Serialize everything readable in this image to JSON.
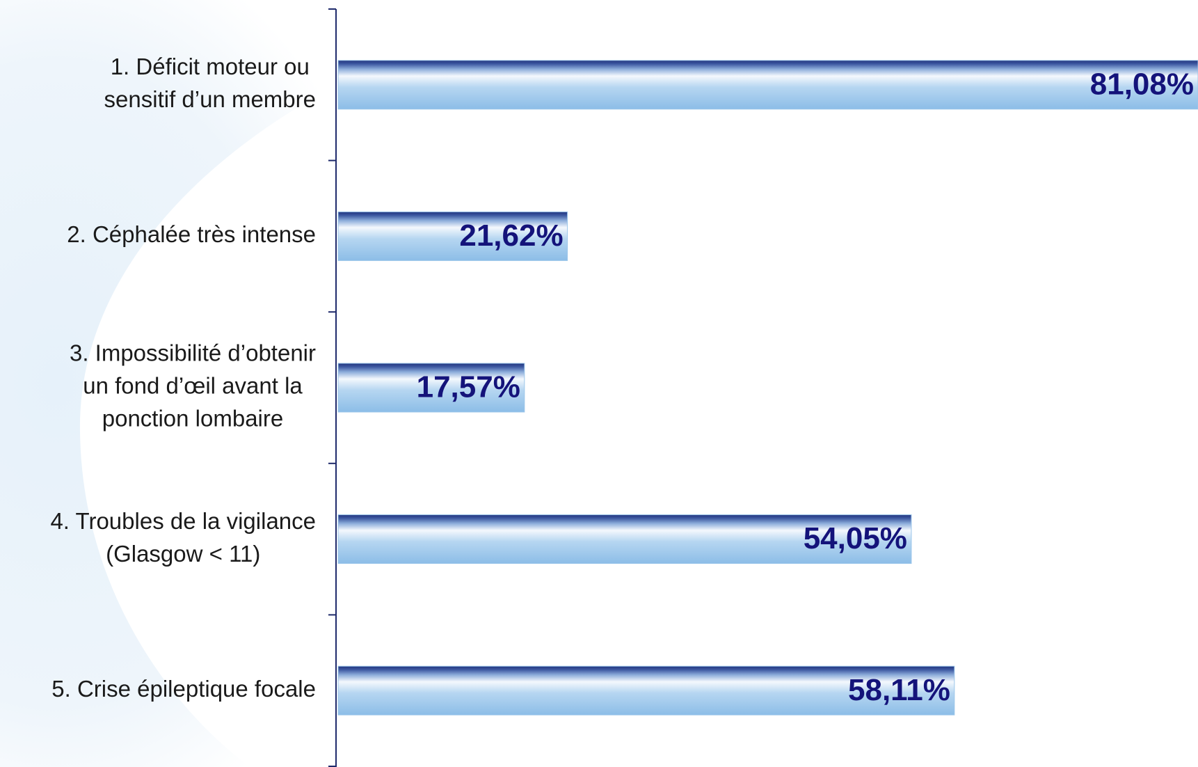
{
  "chart_data": {
    "type": "bar",
    "orientation": "horizontal",
    "categories": [
      [
        "1. Déficit moteur ou",
        "sensitif d’un membre"
      ],
      [
        "2. Céphalée très intense"
      ],
      [
        "3. Impossibilité d’obtenir",
        "un fond d’œil avant la",
        "ponction lombaire"
      ],
      [
        "4. Troubles de la vigilance",
        "(Glasgow < 11)"
      ],
      [
        "5. Crise épileptique focale"
      ]
    ],
    "values": [
      81.08,
      21.62,
      17.57,
      54.05,
      58.11
    ],
    "value_labels": [
      "81,08%",
      "21,62%",
      "17,57%",
      "54,05%",
      "58,11%"
    ],
    "color": "#9cc6ea",
    "label_color": "#14137a",
    "xlim": [
      0,
      81.08
    ]
  }
}
